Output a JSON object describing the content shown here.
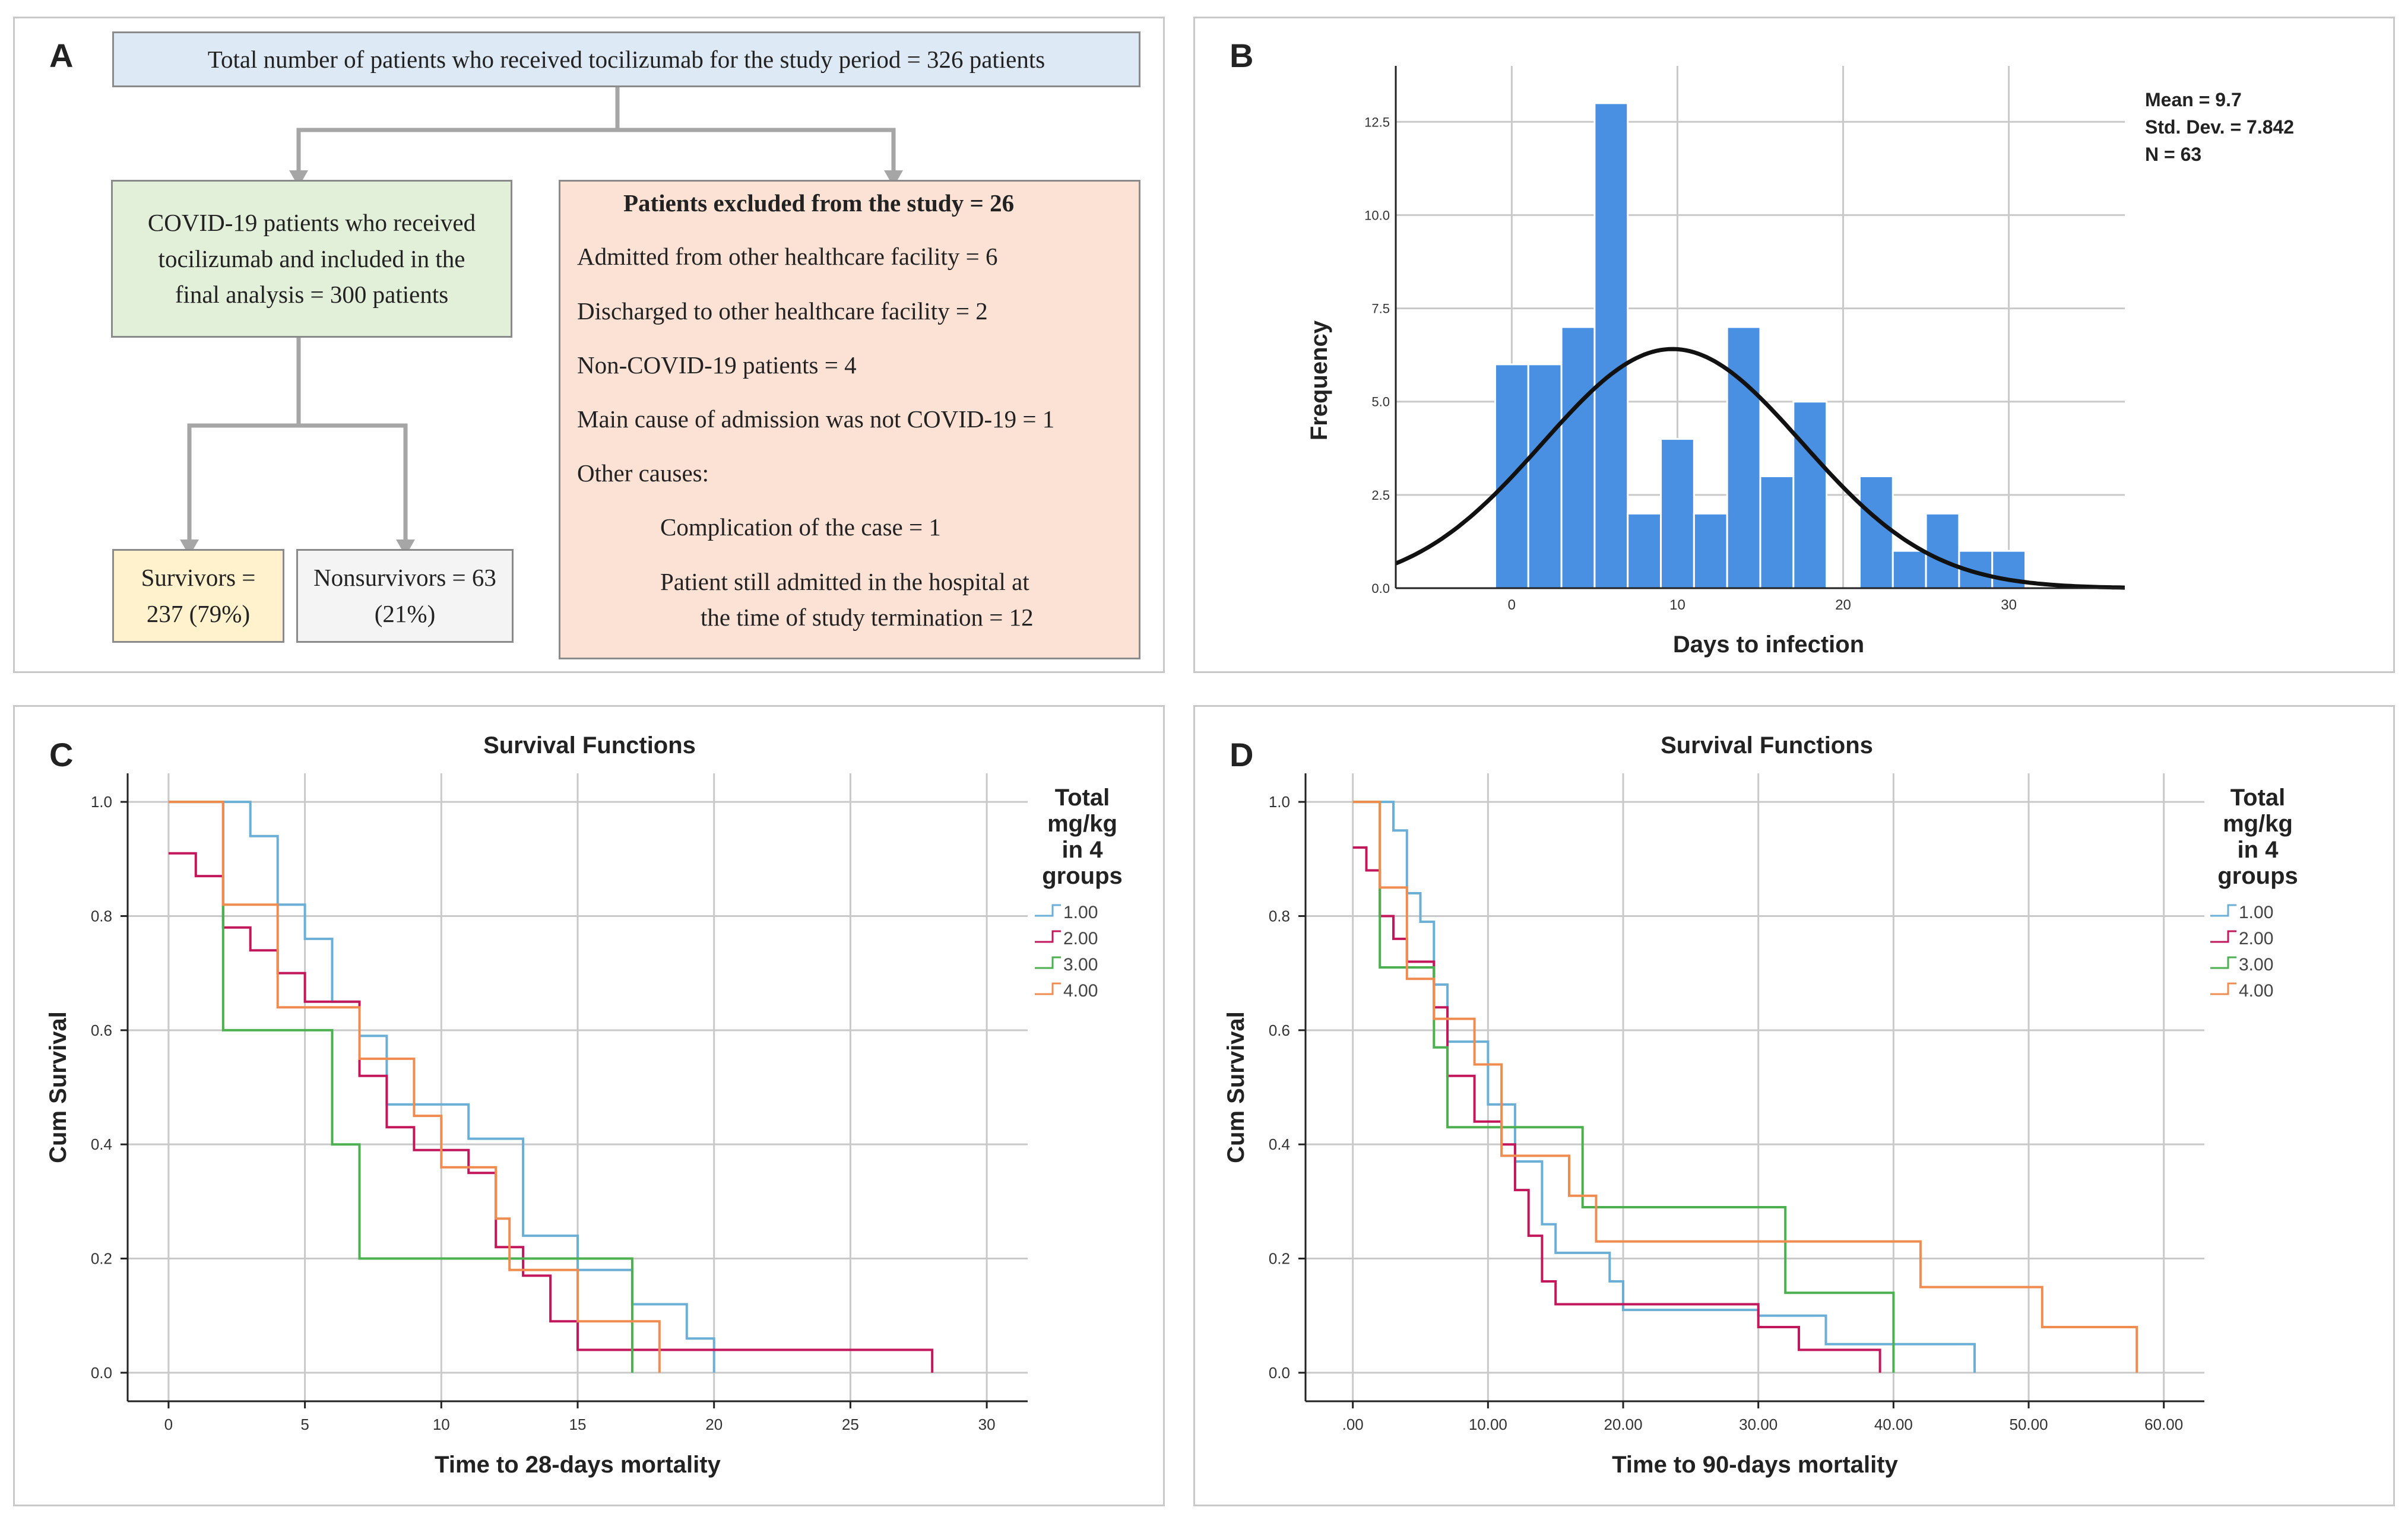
{
  "panels": {
    "a": {
      "label": "A",
      "total_box": "Total number of patients who received tocilizumab for the study period = 326 patients",
      "included_box": "COVID-19 patients who received tocilizumab and included in the final analysis = 300 patients",
      "excluded_title": "Patients excluded from the study = 26",
      "excluded_items": [
        "Admitted from other healthcare facility = 6",
        "Discharged to other healthcare facility = 2",
        "Non-COVID-19 patients = 4",
        "Main cause of admission was not COVID-19 = 1",
        "Other causes:"
      ],
      "other_causes": [
        "Complication of the case = 1",
        "Patient still admitted in the hospital at",
        "the time of study termination = 12"
      ],
      "survivors_box": "Survivors = 237 (79%)",
      "nonsurvivors_box": "Nonsurvivors = 63 (21%)",
      "colors": {
        "total": "#dde9f5",
        "included": "#e2efd9",
        "excluded": "#fbe2d5",
        "survivors": "#fff2cc",
        "nonsurvivors": "#f4f4f4",
        "connector": "#a6a6a6"
      }
    },
    "b": {
      "label": "B"
    },
    "c": {
      "label": "C"
    },
    "d": {
      "label": "D"
    }
  },
  "chart_data": [
    {
      "id": "B",
      "type": "bar",
      "subtype": "histogram",
      "xlabel": "Days to infection",
      "ylabel": "Frequency",
      "bar_color": "#4a90e2",
      "bin_width": 2,
      "bins": [
        {
          "start": -1,
          "value": 6
        },
        {
          "start": 1,
          "value": 6
        },
        {
          "start": 3,
          "value": 7
        },
        {
          "start": 5,
          "value": 13
        },
        {
          "start": 7,
          "value": 2
        },
        {
          "start": 9,
          "value": 4
        },
        {
          "start": 11,
          "value": 2
        },
        {
          "start": 13,
          "value": 7
        },
        {
          "start": 15,
          "value": 3
        },
        {
          "start": 17,
          "value": 5
        },
        {
          "start": 19,
          "value": 0
        },
        {
          "start": 21,
          "value": 3
        },
        {
          "start": 23,
          "value": 1
        },
        {
          "start": 25,
          "value": 2
        },
        {
          "start": 27,
          "value": 1
        },
        {
          "start": 29,
          "value": 1
        }
      ],
      "normal_curve": {
        "mean": 9.7,
        "sd": 7.842,
        "n": 63
      },
      "stats_text": [
        "Mean = 9.7",
        "Std. Dev. = 7.842",
        "N = 63"
      ],
      "xlim": [
        -7,
        37
      ],
      "ylim": [
        0,
        14
      ],
      "xticks": [
        0,
        10,
        20,
        30
      ],
      "xtick_labels": [
        "0",
        "10",
        "20",
        "30"
      ],
      "yticks": [
        0,
        2.5,
        5,
        7.5,
        10,
        12.5
      ],
      "ytick_labels": [
        "0.0",
        "2.5",
        "5.0",
        "7.5",
        "10.0",
        "12.5"
      ],
      "grid": true
    },
    {
      "id": "C",
      "type": "line",
      "subtype": "step",
      "title": "Survival Functions",
      "xlabel": "Time to 28-days mortality",
      "ylabel": "Cum Survival",
      "xlim": [
        -1.5,
        31.5
      ],
      "ylim": [
        -0.05,
        1.05
      ],
      "xticks": [
        0,
        5,
        10,
        15,
        20,
        25,
        30
      ],
      "xtick_labels": [
        "0",
        "5",
        "10",
        "15",
        "20",
        "25",
        "30"
      ],
      "yticks": [
        0,
        0.2,
        0.4,
        0.6,
        0.8,
        1.0
      ],
      "ytick_labels": [
        "0.0",
        "0.2",
        "0.4",
        "0.6",
        "0.8",
        "1.0"
      ],
      "legend_title": "Total mg/kg in 4 groups",
      "series": [
        {
          "name": "1.00",
          "color": "#6baed6",
          "points": [
            [
              0,
              1.0
            ],
            [
              3,
              1.0
            ],
            [
              3,
              0.94
            ],
            [
              4,
              0.94
            ],
            [
              4,
              0.82
            ],
            [
              5,
              0.82
            ],
            [
              5,
              0.76
            ],
            [
              6,
              0.76
            ],
            [
              6,
              0.65
            ],
            [
              7,
              0.65
            ],
            [
              7,
              0.59
            ],
            [
              8,
              0.59
            ],
            [
              8,
              0.47
            ],
            [
              11,
              0.47
            ],
            [
              11,
              0.41
            ],
            [
              13,
              0.41
            ],
            [
              13,
              0.24
            ],
            [
              15,
              0.24
            ],
            [
              15,
              0.18
            ],
            [
              17,
              0.18
            ],
            [
              17,
              0.12
            ],
            [
              19,
              0.12
            ],
            [
              19,
              0.06
            ],
            [
              20,
              0.06
            ],
            [
              20,
              0.0
            ]
          ]
        },
        {
          "name": "2.00",
          "color": "#c2185b",
          "points": [
            [
              0,
              0.91
            ],
            [
              1,
              0.91
            ],
            [
              1,
              0.87
            ],
            [
              2,
              0.87
            ],
            [
              2,
              0.78
            ],
            [
              3,
              0.78
            ],
            [
              3,
              0.74
            ],
            [
              4,
              0.74
            ],
            [
              4,
              0.7
            ],
            [
              5,
              0.7
            ],
            [
              5,
              0.65
            ],
            [
              7,
              0.65
            ],
            [
              7,
              0.52
            ],
            [
              8,
              0.52
            ],
            [
              8,
              0.43
            ],
            [
              9,
              0.43
            ],
            [
              9,
              0.39
            ],
            [
              11,
              0.39
            ],
            [
              11,
              0.35
            ],
            [
              12,
              0.35
            ],
            [
              12,
              0.22
            ],
            [
              13,
              0.22
            ],
            [
              13,
              0.17
            ],
            [
              14,
              0.17
            ],
            [
              14,
              0.09
            ],
            [
              15,
              0.09
            ],
            [
              15,
              0.04
            ],
            [
              28,
              0.04
            ],
            [
              28,
              0.0
            ]
          ]
        },
        {
          "name": "3.00",
          "color": "#4caf50",
          "points": [
            [
              0,
              1.0
            ],
            [
              2,
              1.0
            ],
            [
              2,
              0.6
            ],
            [
              6,
              0.6
            ],
            [
              6,
              0.4
            ],
            [
              7,
              0.4
            ],
            [
              7,
              0.2
            ],
            [
              17,
              0.2
            ],
            [
              17,
              0.0
            ]
          ]
        },
        {
          "name": "4.00",
          "color": "#f08c50",
          "points": [
            [
              0,
              1.0
            ],
            [
              2,
              1.0
            ],
            [
              2,
              0.82
            ],
            [
              4,
              0.82
            ],
            [
              4,
              0.64
            ],
            [
              6,
              0.64
            ],
            [
              6,
              0.64
            ],
            [
              7,
              0.64
            ],
            [
              7,
              0.55
            ],
            [
              9,
              0.55
            ],
            [
              9,
              0.45
            ],
            [
              10,
              0.45
            ],
            [
              10,
              0.36
            ],
            [
              12,
              0.36
            ],
            [
              12,
              0.27
            ],
            [
              12.5,
              0.27
            ],
            [
              12.5,
              0.18
            ],
            [
              15,
              0.18
            ],
            [
              15,
              0.09
            ],
            [
              18,
              0.09
            ],
            [
              18,
              0.0
            ]
          ]
        }
      ]
    },
    {
      "id": "D",
      "type": "line",
      "subtype": "step",
      "title": "Survival Functions",
      "xlabel": "Time to 90-days mortality",
      "ylabel": "Cum Survival",
      "xlim": [
        -3.5,
        63
      ],
      "ylim": [
        -0.05,
        1.05
      ],
      "xticks": [
        0,
        10,
        20,
        30,
        40,
        50,
        60
      ],
      "xtick_labels": [
        ".00",
        "10.00",
        "20.00",
        "30.00",
        "40.00",
        "50.00",
        "60.00"
      ],
      "yticks": [
        0,
        0.2,
        0.4,
        0.6,
        0.8,
        1.0
      ],
      "ytick_labels": [
        "0.0",
        "0.2",
        "0.4",
        "0.6",
        "0.8",
        "1.0"
      ],
      "legend_title": "Total mg/kg in 4 groups",
      "series": [
        {
          "name": "1.00",
          "color": "#6baed6",
          "points": [
            [
              0,
              1.0
            ],
            [
              3,
              1.0
            ],
            [
              3,
              0.95
            ],
            [
              4,
              0.95
            ],
            [
              4,
              0.84
            ],
            [
              5,
              0.84
            ],
            [
              5,
              0.79
            ],
            [
              6,
              0.79
            ],
            [
              6,
              0.68
            ],
            [
              7,
              0.68
            ],
            [
              7,
              0.58
            ],
            [
              10,
              0.58
            ],
            [
              10,
              0.47
            ],
            [
              12,
              0.47
            ],
            [
              12,
              0.37
            ],
            [
              14,
              0.37
            ],
            [
              14,
              0.26
            ],
            [
              15,
              0.26
            ],
            [
              15,
              0.21
            ],
            [
              19,
              0.21
            ],
            [
              19,
              0.16
            ],
            [
              20,
              0.16
            ],
            [
              20,
              0.11
            ],
            [
              30,
              0.11
            ],
            [
              30,
              0.1
            ],
            [
              35,
              0.1
            ],
            [
              35,
              0.05
            ],
            [
              46,
              0.05
            ],
            [
              46,
              0.0
            ]
          ]
        },
        {
          "name": "2.00",
          "color": "#c2185b",
          "points": [
            [
              0,
              0.92
            ],
            [
              1,
              0.92
            ],
            [
              1,
              0.88
            ],
            [
              2,
              0.88
            ],
            [
              2,
              0.8
            ],
            [
              3,
              0.8
            ],
            [
              3,
              0.76
            ],
            [
              4,
              0.76
            ],
            [
              4,
              0.72
            ],
            [
              6,
              0.72
            ],
            [
              6,
              0.64
            ],
            [
              7,
              0.64
            ],
            [
              7,
              0.52
            ],
            [
              9,
              0.52
            ],
            [
              9,
              0.44
            ],
            [
              11,
              0.44
            ],
            [
              11,
              0.4
            ],
            [
              12,
              0.4
            ],
            [
              12,
              0.32
            ],
            [
              13,
              0.32
            ],
            [
              13,
              0.24
            ],
            [
              14,
              0.24
            ],
            [
              14,
              0.16
            ],
            [
              15,
              0.16
            ],
            [
              15,
              0.12
            ],
            [
              30,
              0.12
            ],
            [
              30,
              0.08
            ],
            [
              33,
              0.08
            ],
            [
              33,
              0.04
            ],
            [
              39,
              0.04
            ],
            [
              39,
              0.0
            ]
          ]
        },
        {
          "name": "3.00",
          "color": "#4caf50",
          "points": [
            [
              0,
              1.0
            ],
            [
              2,
              1.0
            ],
            [
              2,
              0.71
            ],
            [
              6,
              0.71
            ],
            [
              6,
              0.57
            ],
            [
              7,
              0.57
            ],
            [
              7,
              0.43
            ],
            [
              17,
              0.43
            ],
            [
              17,
              0.29
            ],
            [
              32,
              0.29
            ],
            [
              32,
              0.14
            ],
            [
              40,
              0.14
            ],
            [
              40,
              0.0
            ]
          ]
        },
        {
          "name": "4.00",
          "color": "#f08c50",
          "points": [
            [
              0,
              1.0
            ],
            [
              2,
              1.0
            ],
            [
              2,
              0.85
            ],
            [
              4,
              0.85
            ],
            [
              4,
              0.69
            ],
            [
              6,
              0.69
            ],
            [
              6,
              0.62
            ],
            [
              9,
              0.62
            ],
            [
              9,
              0.54
            ],
            [
              11,
              0.54
            ],
            [
              11,
              0.38
            ],
            [
              16,
              0.38
            ],
            [
              16,
              0.31
            ],
            [
              18,
              0.31
            ],
            [
              18,
              0.23
            ],
            [
              42,
              0.23
            ],
            [
              42,
              0.15
            ],
            [
              51,
              0.15
            ],
            [
              51,
              0.08
            ],
            [
              58,
              0.08
            ],
            [
              58,
              0.0
            ]
          ]
        }
      ]
    }
  ]
}
